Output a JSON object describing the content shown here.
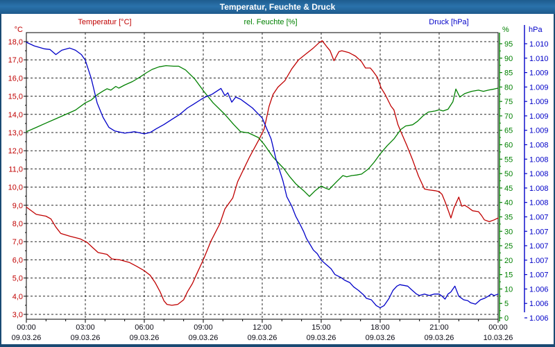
{
  "window": {
    "title": "Temperatur, Feuchte & Druck",
    "titlebar_color": "#2a6ea6",
    "frame_color": "#1a4a73"
  },
  "header": {
    "temperature_label": "Temperatur [°C]",
    "humidity_label": "rel. Feuchte [%]",
    "pressure_label": "Druck [hPa]"
  },
  "axes": {
    "left": {
      "unit": "°C",
      "color": "#c00000",
      "labels": [
        "18,0",
        "17,0",
        "16,0",
        "15,0",
        "14,0",
        "13,0",
        "12,0",
        "11,0",
        "10,0",
        "9,0",
        "8,0",
        "7,0",
        "6,0",
        "5,0",
        "4,0",
        "3,0"
      ]
    },
    "humidity": {
      "unit": "%",
      "color": "#008000",
      "labels": [
        "95",
        "90",
        "85",
        "80",
        "75",
        "70",
        "65",
        "60",
        "55",
        "50",
        "45",
        "40",
        "35",
        "30",
        "25",
        "20",
        "15",
        "10",
        "5",
        "0"
      ]
    },
    "pressure": {
      "unit": "hPa",
      "color": "#0000c8",
      "labels": [
        "1.010",
        "1.010",
        "1.009",
        "1.009",
        "1.009",
        "1.009",
        "1.009",
        "1.008",
        "1.008",
        "1.008",
        "1.008",
        "1.008",
        "1.007",
        "1.007",
        "1.007",
        "1.007",
        "1.007",
        "1.006",
        "1.006",
        "1.006"
      ]
    },
    "x": {
      "tick_color": "#0a0a14",
      "ticks": [
        {
          "time": "00:00",
          "date": "09.03.26"
        },
        {
          "time": "03:00",
          "date": "09.03.26"
        },
        {
          "time": "06:00",
          "date": "09.03.26"
        },
        {
          "time": "09:00",
          "date": "09.03.26"
        },
        {
          "time": "12:00",
          "date": "09.03.26"
        },
        {
          "time": "15:00",
          "date": "09.03.26"
        },
        {
          "time": "18:00",
          "date": "09.03.26"
        },
        {
          "time": "21:00",
          "date": "09.03.26"
        },
        {
          "time": "00:00",
          "date": "10.03.26"
        }
      ]
    }
  },
  "chart_data": {
    "type": "line",
    "title": "Temperatur, Feuchte & Druck",
    "x_unit": "hours",
    "x_range": [
      0,
      24
    ],
    "grid": true,
    "scales": {
      "temperature": {
        "top": 18,
        "bottom": 3,
        "step": 1
      },
      "humidity": {
        "top": 95,
        "bottom": 0,
        "step": 5
      },
      "pressure": {
        "top": 1010.2,
        "bottom": 1006.4,
        "step": 0.2
      }
    },
    "series": [
      {
        "name": "Temperatur",
        "unit": "°C",
        "color": "#c00000",
        "axis": "temperature",
        "points": [
          [
            0,
            8.9
          ],
          [
            0.5,
            8.5
          ],
          [
            1,
            8.4
          ],
          [
            1.25,
            8.25
          ],
          [
            1.5,
            7.8
          ],
          [
            1.75,
            7.45
          ],
          [
            2.2,
            7.3
          ],
          [
            2.75,
            7.15
          ],
          [
            3.1,
            6.95
          ],
          [
            3.35,
            6.7
          ],
          [
            3.65,
            6.4
          ],
          [
            4.1,
            6.3
          ],
          [
            4.35,
            6.05
          ],
          [
            4.75,
            6.0
          ],
          [
            5.25,
            5.85
          ],
          [
            5.6,
            5.65
          ],
          [
            6.0,
            5.4
          ],
          [
            6.3,
            5.15
          ],
          [
            6.55,
            4.75
          ],
          [
            6.8,
            4.25
          ],
          [
            7.0,
            3.75
          ],
          [
            7.15,
            3.55
          ],
          [
            7.4,
            3.5
          ],
          [
            7.7,
            3.55
          ],
          [
            8.0,
            3.8
          ],
          [
            8.2,
            4.25
          ],
          [
            8.45,
            4.7
          ],
          [
            8.7,
            5.3
          ],
          [
            9.0,
            6.0
          ],
          [
            9.4,
            7.05
          ],
          [
            9.85,
            8.0
          ],
          [
            10.1,
            8.8
          ],
          [
            10.5,
            9.4
          ],
          [
            10.75,
            10.3
          ],
          [
            11.35,
            11.65
          ],
          [
            11.85,
            12.65
          ],
          [
            12.1,
            13.2
          ],
          [
            12.35,
            14.45
          ],
          [
            12.55,
            15.1
          ],
          [
            12.8,
            15.5
          ],
          [
            13.15,
            15.85
          ],
          [
            13.5,
            16.5
          ],
          [
            13.85,
            17.0
          ],
          [
            14.2,
            17.3
          ],
          [
            14.6,
            17.65
          ],
          [
            14.9,
            17.95
          ],
          [
            15.05,
            18.05
          ],
          [
            15.3,
            17.7
          ],
          [
            15.45,
            17.5
          ],
          [
            15.65,
            16.95
          ],
          [
            15.9,
            17.45
          ],
          [
            16.05,
            17.5
          ],
          [
            16.4,
            17.4
          ],
          [
            16.75,
            17.2
          ],
          [
            17.05,
            16.9
          ],
          [
            17.25,
            16.55
          ],
          [
            17.5,
            16.55
          ],
          [
            17.65,
            16.35
          ],
          [
            17.85,
            16.05
          ],
          [
            18.05,
            15.45
          ],
          [
            18.25,
            15.1
          ],
          [
            18.55,
            14.45
          ],
          [
            18.7,
            14.25
          ],
          [
            18.9,
            13.45
          ],
          [
            19.05,
            13.05
          ],
          [
            19.35,
            12.3
          ],
          [
            19.65,
            11.5
          ],
          [
            19.95,
            10.6
          ],
          [
            20.25,
            9.9
          ],
          [
            20.45,
            9.85
          ],
          [
            20.8,
            9.8
          ],
          [
            21.0,
            9.75
          ],
          [
            21.15,
            9.6
          ],
          [
            21.3,
            9.2
          ],
          [
            21.45,
            8.75
          ],
          [
            21.6,
            8.3
          ],
          [
            21.75,
            8.85
          ],
          [
            22.0,
            9.45
          ],
          [
            22.15,
            8.95
          ],
          [
            22.3,
            9.0
          ],
          [
            22.45,
            8.9
          ],
          [
            22.7,
            8.7
          ],
          [
            23.0,
            8.65
          ],
          [
            23.15,
            8.45
          ],
          [
            23.3,
            8.2
          ],
          [
            23.55,
            8.1
          ],
          [
            23.8,
            8.2
          ],
          [
            24,
            8.3
          ]
        ]
      },
      {
        "name": "rel. Feuchte",
        "unit": "%",
        "color": "#008000",
        "axis": "humidity",
        "points": [
          [
            0,
            64.5
          ],
          [
            0.5,
            66
          ],
          [
            1,
            67.5
          ],
          [
            1.5,
            69
          ],
          [
            2,
            70.5
          ],
          [
            2.5,
            72
          ],
          [
            3,
            74.5
          ],
          [
            3.3,
            75.5
          ],
          [
            3.6,
            77.3
          ],
          [
            3.9,
            78.6
          ],
          [
            4.1,
            79.4
          ],
          [
            4.3,
            78.9
          ],
          [
            4.55,
            80.2
          ],
          [
            4.7,
            79.6
          ],
          [
            5.0,
            80.7
          ],
          [
            5.4,
            81.9
          ],
          [
            5.75,
            83.3
          ],
          [
            6.1,
            84.9
          ],
          [
            6.4,
            86.1
          ],
          [
            6.75,
            87.0
          ],
          [
            7.1,
            87.4
          ],
          [
            7.5,
            87.2
          ],
          [
            7.75,
            87.2
          ],
          [
            8.1,
            85.9
          ],
          [
            8.55,
            82.9
          ],
          [
            9.05,
            78.3
          ],
          [
            9.5,
            74.5
          ],
          [
            10.1,
            70.5
          ],
          [
            10.55,
            67
          ],
          [
            10.9,
            64.5
          ],
          [
            11.3,
            64.1
          ],
          [
            11.8,
            62.5
          ],
          [
            12.1,
            60.1
          ],
          [
            12.55,
            55.7
          ],
          [
            13.1,
            51.7
          ],
          [
            13.4,
            48.9
          ],
          [
            13.7,
            46.5
          ],
          [
            14.1,
            44.1
          ],
          [
            14.4,
            42.1
          ],
          [
            14.7,
            44.1
          ],
          [
            15.0,
            45.7
          ],
          [
            15.2,
            45.0
          ],
          [
            15.4,
            44.5
          ],
          [
            15.8,
            47.3
          ],
          [
            16.1,
            49.3
          ],
          [
            16.3,
            48.9
          ],
          [
            16.55,
            49.3
          ],
          [
            16.8,
            49.5
          ],
          [
            17.05,
            49.8
          ],
          [
            17.4,
            51.6
          ],
          [
            17.7,
            54.0
          ],
          [
            18.0,
            56.8
          ],
          [
            18.35,
            59.6
          ],
          [
            18.7,
            62.0
          ],
          [
            19.05,
            65.3
          ],
          [
            19.3,
            66.5
          ],
          [
            19.65,
            66.9
          ],
          [
            19.9,
            68.1
          ],
          [
            20.2,
            70.1
          ],
          [
            20.45,
            71.3
          ],
          [
            20.8,
            71.7
          ],
          [
            21.0,
            72.1
          ],
          [
            21.2,
            71.7
          ],
          [
            21.45,
            72.3
          ],
          [
            21.7,
            74.9
          ],
          [
            21.85,
            79.3
          ],
          [
            22.05,
            76.5
          ],
          [
            22.3,
            77.7
          ],
          [
            22.65,
            78.5
          ],
          [
            23.0,
            78.9
          ],
          [
            23.25,
            78.5
          ],
          [
            23.5,
            78.9
          ],
          [
            23.8,
            79.3
          ],
          [
            24,
            79.6
          ]
        ]
      },
      {
        "name": "Druck",
        "unit": "hPa",
        "color": "#0000c8",
        "axis": "pressure",
        "points": [
          [
            0,
            1010.22
          ],
          [
            0.4,
            1010.17
          ],
          [
            0.9,
            1010.13
          ],
          [
            1.2,
            1010.12
          ],
          [
            1.5,
            1010.05
          ],
          [
            1.8,
            1010.11
          ],
          [
            2.2,
            1010.14
          ],
          [
            2.5,
            1010.11
          ],
          [
            2.8,
            1010.05
          ],
          [
            3.0,
            1009.97
          ],
          [
            3.3,
            1009.72
          ],
          [
            3.6,
            1009.38
          ],
          [
            3.9,
            1009.18
          ],
          [
            4.2,
            1009.04
          ],
          [
            4.5,
            1008.99
          ],
          [
            5.0,
            1008.96
          ],
          [
            5.5,
            1008.98
          ],
          [
            6.0,
            1008.95
          ],
          [
            6.3,
            1008.97
          ],
          [
            6.6,
            1009.02
          ],
          [
            7.0,
            1009.08
          ],
          [
            7.4,
            1009.15
          ],
          [
            7.8,
            1009.22
          ],
          [
            8.2,
            1009.31
          ],
          [
            8.5,
            1009.36
          ],
          [
            8.9,
            1009.43
          ],
          [
            9.1,
            1009.46
          ],
          [
            9.45,
            1009.5
          ],
          [
            9.9,
            1009.58
          ],
          [
            10.1,
            1009.48
          ],
          [
            10.25,
            1009.52
          ],
          [
            10.45,
            1009.39
          ],
          [
            10.65,
            1009.46
          ],
          [
            10.9,
            1009.43
          ],
          [
            11.15,
            1009.38
          ],
          [
            11.5,
            1009.31
          ],
          [
            11.75,
            1009.24
          ],
          [
            12.0,
            1009.17
          ],
          [
            12.2,
            1009.04
          ],
          [
            12.45,
            1008.88
          ],
          [
            12.7,
            1008.6
          ],
          [
            12.9,
            1008.43
          ],
          [
            13.05,
            1008.3
          ],
          [
            13.25,
            1008.08
          ],
          [
            13.5,
            1007.95
          ],
          [
            13.7,
            1007.81
          ],
          [
            13.9,
            1007.71
          ],
          [
            14.1,
            1007.6
          ],
          [
            14.25,
            1007.5
          ],
          [
            14.45,
            1007.41
          ],
          [
            14.6,
            1007.34
          ],
          [
            14.8,
            1007.29
          ],
          [
            15.0,
            1007.2
          ],
          [
            15.25,
            1007.14
          ],
          [
            15.5,
            1007.08
          ],
          [
            15.7,
            1007.0
          ],
          [
            16.0,
            1006.96
          ],
          [
            16.2,
            1006.92
          ],
          [
            16.45,
            1006.89
          ],
          [
            16.65,
            1006.83
          ],
          [
            16.9,
            1006.78
          ],
          [
            17.15,
            1006.72
          ],
          [
            17.3,
            1006.67
          ],
          [
            17.55,
            1006.65
          ],
          [
            17.8,
            1006.57
          ],
          [
            18.0,
            1006.54
          ],
          [
            18.2,
            1006.57
          ],
          [
            18.45,
            1006.67
          ],
          [
            18.65,
            1006.78
          ],
          [
            18.85,
            1006.84
          ],
          [
            19.0,
            1006.86
          ],
          [
            19.4,
            1006.84
          ],
          [
            19.6,
            1006.79
          ],
          [
            19.85,
            1006.73
          ],
          [
            20.0,
            1006.71
          ],
          [
            20.25,
            1006.73
          ],
          [
            20.5,
            1006.71
          ],
          [
            20.75,
            1006.73
          ],
          [
            21.0,
            1006.73
          ],
          [
            21.15,
            1006.7
          ],
          [
            21.3,
            1006.66
          ],
          [
            21.45,
            1006.73
          ],
          [
            21.6,
            1006.76
          ],
          [
            21.8,
            1006.84
          ],
          [
            22.0,
            1006.7
          ],
          [
            22.25,
            1006.65
          ],
          [
            22.45,
            1006.64
          ],
          [
            22.6,
            1006.61
          ],
          [
            22.85,
            1006.59
          ],
          [
            23.1,
            1006.65
          ],
          [
            23.3,
            1006.67
          ],
          [
            23.5,
            1006.7
          ],
          [
            23.65,
            1006.73
          ],
          [
            23.8,
            1006.71
          ],
          [
            24,
            1006.73
          ]
        ]
      }
    ]
  }
}
